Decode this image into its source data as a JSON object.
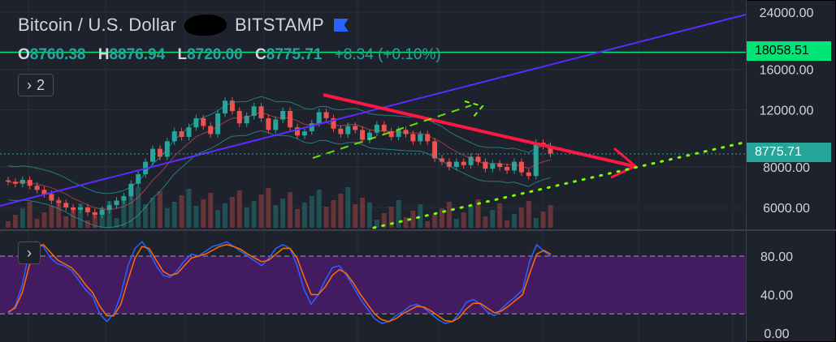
{
  "legend": {
    "symbol": "Bitcoin / U.S. Dollar",
    "exchange": "BITSTAMP",
    "open_label": "O",
    "open": "8760.38",
    "high_label": "H",
    "high": "8876.94",
    "low_label": "L",
    "low": "8720.00",
    "close_label": "C",
    "close": "8775.71",
    "change": "+8.34 (+0.10%)",
    "indicators_collapsed": "2",
    "osc_collapsed": "›"
  },
  "colors": {
    "up": "#26a69a",
    "down": "#ef5350",
    "bg": "#1e222d",
    "green_line": "#00e676",
    "blue_line": "#5b2bff",
    "red_arrow": "#ff1744",
    "dotted": "#76ff03",
    "stoch_k": "#2962ff",
    "stoch_d": "#ff6d00",
    "osc_band": "#4a1a6b"
  },
  "price_axis": {
    "ticks": [
      "24000.00",
      "16000.00",
      "12000.00",
      "8000.00",
      "6000.00"
    ],
    "horizontal_line_value": "18058.51",
    "last_price": "8775.71",
    "scale": "log"
  },
  "osc_axis": {
    "ticks": [
      "80.00",
      "40.00",
      "0.00"
    ],
    "upper_band": 80,
    "lower_band": 20
  },
  "chart_data": [
    {
      "type": "candlestick",
      "title": "Bitcoin / U.S. Dollar",
      "yscale": "log",
      "ylim": [
        5000,
        24000
      ],
      "y_ticks": [
        24000,
        16000,
        12000,
        8000,
        6000
      ],
      "last": 8775.71,
      "series": [
        {
          "values": [
            7200,
            7100,
            7300,
            7000,
            6800,
            6600,
            6300,
            6200,
            6000,
            5900,
            6000,
            5800,
            5700,
            5900,
            6100,
            6300,
            6500,
            7100,
            7600,
            8300,
            9100,
            8600,
            9600,
            10300,
            9900,
            10600,
            11300,
            10700,
            10100,
            11700,
            12800,
            11900,
            10900,
            11500,
            12300,
            11300,
            10400,
            11200,
            11900,
            10600,
            10000,
            10300,
            10900,
            11800,
            11300,
            10500,
            10100,
            10700,
            10400,
            9700,
            10200,
            10800,
            10300,
            9900,
            10400,
            10100,
            9600,
            10100,
            9600,
            8500,
            8300,
            8000,
            8300,
            8100,
            8600,
            8300,
            7900,
            8200,
            8000,
            7800,
            8300,
            7700,
            7500,
            9500,
            9300,
            8800
          ]
        }
      ],
      "overlays": [
        "bollinger_bands",
        "moving_average",
        "volume"
      ],
      "drawings": {
        "horizontal_line": 18058.51,
        "rising_trendline": "blue",
        "descending_trendline": "red arrow",
        "support_trendline": "green dotted"
      }
    },
    {
      "type": "line",
      "ylim": [
        0,
        100
      ],
      "y_ticks": [
        80,
        40,
        0
      ],
      "bands": [
        80,
        20
      ],
      "series": [
        {
          "values": [
            20,
            28,
            50,
            85,
            95,
            90,
            78,
            72,
            70,
            65,
            55,
            45,
            38,
            20,
            12,
            20,
            40,
            70,
            88,
            95,
            85,
            70,
            60,
            58,
            65,
            75,
            82,
            80,
            85,
            90,
            92,
            95,
            90,
            85,
            80,
            75,
            70,
            78,
            88,
            92,
            88,
            70,
            45,
            30,
            40,
            55,
            68,
            70,
            60,
            48,
            35,
            25,
            15,
            10,
            12,
            18,
            22,
            28,
            30,
            26,
            20,
            14,
            10,
            12,
            20,
            32,
            35,
            30,
            22,
            18,
            25,
            32,
            38,
            45,
            75,
            92,
            85,
            80
          ]
        },
        {
          "values": [
            22,
            26,
            42,
            70,
            88,
            92,
            84,
            76,
            72,
            68,
            60,
            50,
            42,
            28,
            18,
            18,
            30,
            55,
            78,
            90,
            88,
            76,
            64,
            60,
            62,
            70,
            78,
            80,
            82,
            86,
            90,
            92,
            90,
            87,
            82,
            78,
            74,
            76,
            82,
            88,
            88,
            78,
            58,
            40,
            40,
            48,
            60,
            66,
            62,
            52,
            40,
            30,
            20,
            14,
            12,
            15,
            20,
            24,
            28,
            27,
            23,
            18,
            13,
            12,
            16,
            25,
            31,
            31,
            26,
            21,
            23,
            28,
            34,
            40,
            62,
            82,
            86,
            82
          ]
        }
      ]
    }
  ]
}
